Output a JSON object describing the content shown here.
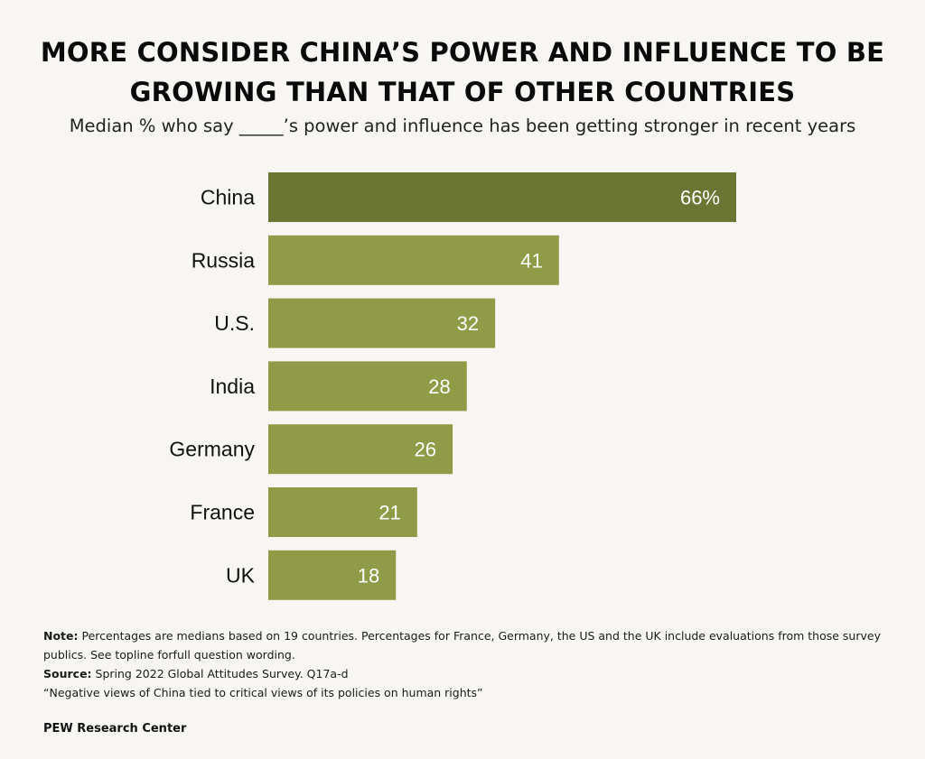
{
  "chart_data": {
    "type": "bar",
    "orientation": "horizontal",
    "title": "MORE CONSIDER CHINA’S POWER AND INFLUENCE TO BE GROWING THAN THAT OF OTHER COUNTRIES",
    "title_lines": [
      "MORE CONSIDER CHINA’S POWER AND INFLUENCE TO BE",
      "GROWING THAN THAT OF OTHER COUNTRIES"
    ],
    "subtitle": "Median % who say _____’s power and influence has been getting stronger in recent years",
    "categories": [
      "China",
      "Russia",
      "U.S.",
      "India",
      "Germany",
      "France",
      "UK"
    ],
    "values": [
      66,
      41,
      32,
      28,
      26,
      21,
      18
    ],
    "value_labels": [
      "66%",
      "41",
      "32",
      "28",
      "26",
      "21",
      "18"
    ],
    "highlight": "China",
    "xlabel": "",
    "ylabel": "",
    "xlim": [
      0,
      66
    ],
    "grid": false,
    "legend": "none",
    "colors": {
      "highlight": "#6b7534",
      "default": "#8f9b46",
      "label": "#ffffff"
    }
  },
  "notes": {
    "note_label": "Note:",
    "note_text": " Percentages are medians based on 19 countries. Percentages for France, Germany, the US and the UK include evaluations from those survey publics. See topline forfull question wording.",
    "source_label": "Source:",
    "source_text": " Spring 2022 Global Attitudes Survey. Q17a-d",
    "report_title": "“Negative views of China tied to critical views of its policies on human rights”"
  },
  "branding": "PEW Research Center"
}
